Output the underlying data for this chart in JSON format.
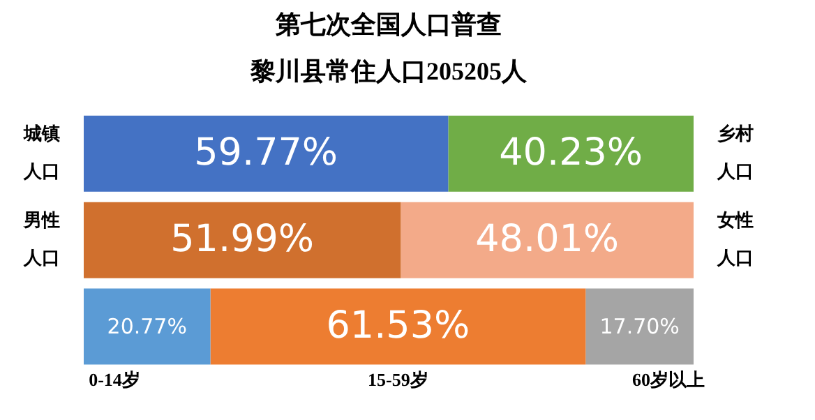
{
  "chart_data": {
    "type": "bar",
    "orientation": "horizontal",
    "stacked": true,
    "title": "第七次全国人口普查",
    "subtitle": "黎川县常住人口205205人",
    "categories": [
      null,
      null,
      null
    ],
    "xlim": [
      0,
      100
    ],
    "tick_labels": false,
    "legend": false,
    "series": [
      {
        "name": "城镇人口",
        "color": "#4472c4",
        "values": [
          59.77,
          null,
          null
        ],
        "value_labels": [
          "59.77%",
          null,
          null
        ]
      },
      {
        "name": "乡村人口",
        "color": "#70ad47",
        "values": [
          40.23,
          null,
          null
        ],
        "value_labels": [
          "40.23%",
          null,
          null
        ]
      },
      {
        "name": "男性人口",
        "color": "#d0702e",
        "values": [
          null,
          51.99,
          null
        ],
        "value_labels": [
          null,
          "51.99%",
          null
        ]
      },
      {
        "name": "女性人口",
        "color": "#f3aa89",
        "values": [
          null,
          48.01,
          null
        ],
        "value_labels": [
          null,
          "48.01%",
          null
        ]
      },
      {
        "name": "0-14岁",
        "color": "#5b9bd5",
        "values": [
          null,
          null,
          20.77
        ],
        "value_labels": [
          null,
          null,
          "20.77%"
        ]
      },
      {
        "name": "15-59岁",
        "color": "#ed7d31",
        "values": [
          null,
          null,
          61.53
        ],
        "value_labels": [
          null,
          null,
          "61.53%"
        ]
      },
      {
        "name": "60岁以上",
        "color": "#a5a5a5",
        "values": [
          null,
          null,
          17.7
        ],
        "value_labels": [
          null,
          null,
          "17.70%"
        ]
      }
    ]
  }
}
